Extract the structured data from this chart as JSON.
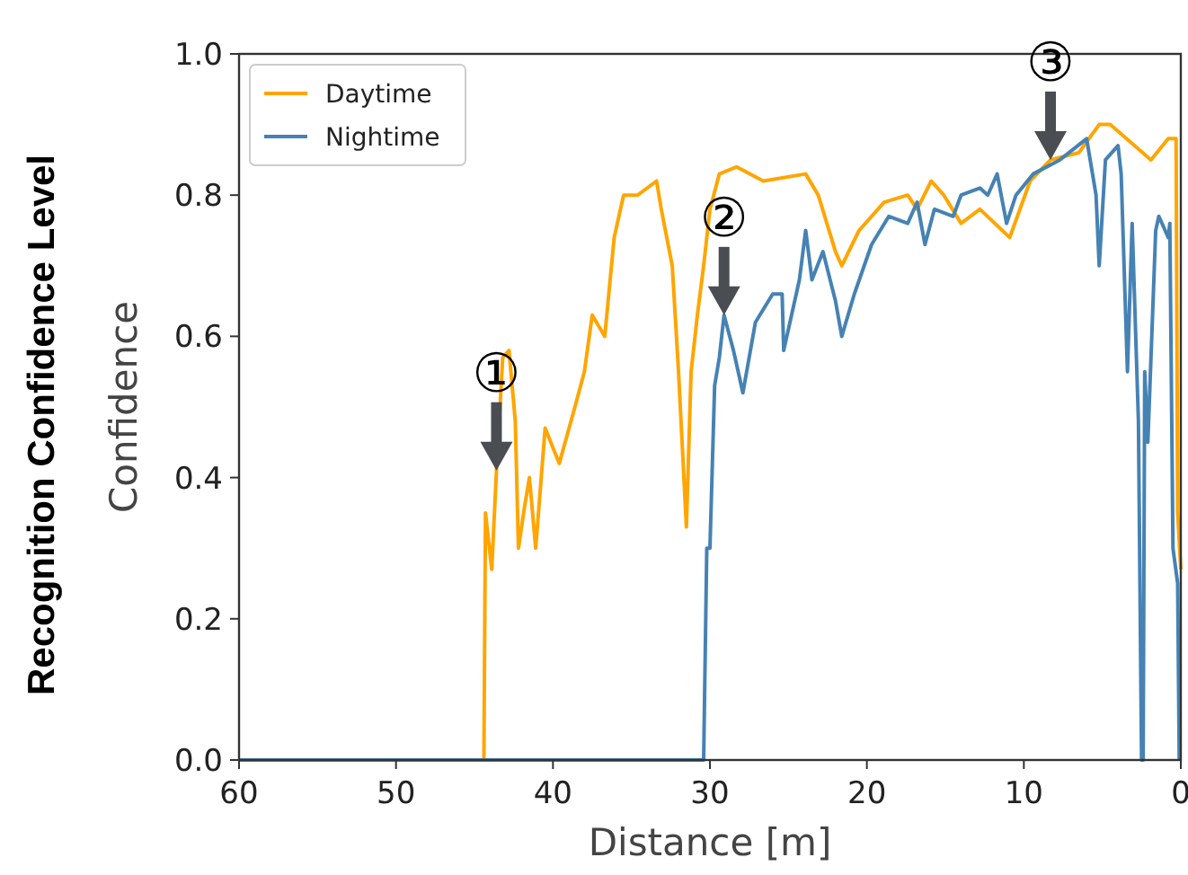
{
  "chart_data": {
    "type": "line",
    "xlabel": "Distance [m]",
    "ylabel": "Confidence",
    "xlim": [
      60,
      0
    ],
    "xticks": [
      60,
      50,
      40,
      30,
      20,
      10,
      0
    ],
    "ylim": [
      0,
      1
    ],
    "yticks": [
      {
        "value": 0,
        "label": "0.0"
      },
      {
        "value": 0.2,
        "label": "0.2"
      },
      {
        "value": 0.4,
        "label": "0.4"
      },
      {
        "value": 0.6,
        "label": "0.6"
      },
      {
        "value": 0.8,
        "label": "0.8"
      },
      {
        "value": 1,
        "label": "1.0"
      }
    ],
    "grid": false,
    "legend": "top left",
    "marker": "none",
    "line_style": "solid",
    "series": [
      {
        "name": "Daytime",
        "color": "#ffa500",
        "x": [
          60,
          44.4,
          44.3,
          43.9,
          43.6,
          43.2,
          42.8,
          42.4,
          42.2,
          41.8,
          41.5,
          41.1,
          40.5,
          39.6,
          38.6,
          38.0,
          37.5,
          36.7,
          36.1,
          35.5,
          34.6,
          33.4,
          33.1,
          32.4,
          32.0,
          31.5,
          31.2,
          30.8,
          30.4,
          30.0,
          29.4,
          28.3,
          26.6,
          23.9,
          23.1,
          22.0,
          21.6,
          20.5,
          18.9,
          17.4,
          16.8,
          15.9,
          15.1,
          14.0,
          12.8,
          10.9,
          9.6,
          8.3,
          6.5,
          5.2,
          4.5,
          1.9,
          0.8,
          0.3,
          0.2,
          0
        ],
        "values": [
          0,
          0,
          0.35,
          0.27,
          0.41,
          0.57,
          0.58,
          0.48,
          0.3,
          0.36,
          0.4,
          0.3,
          0.47,
          0.42,
          0.5,
          0.55,
          0.63,
          0.6,
          0.74,
          0.8,
          0.8,
          0.82,
          0.78,
          0.7,
          0.55,
          0.33,
          0.55,
          0.63,
          0.7,
          0.78,
          0.83,
          0.84,
          0.82,
          0.83,
          0.8,
          0.72,
          0.7,
          0.75,
          0.79,
          0.8,
          0.78,
          0.82,
          0.8,
          0.76,
          0.78,
          0.74,
          0.82,
          0.85,
          0.86,
          0.9,
          0.9,
          0.85,
          0.88,
          0.88,
          0.35,
          0.27
        ]
      },
      {
        "name": "Nightime",
        "color": "#4682b4",
        "x": [
          60,
          30.4,
          30.2,
          30.0,
          29.7,
          29.4,
          29.1,
          28.5,
          27.9,
          27.1,
          26.0,
          25.4,
          25.3,
          24.3,
          23.9,
          23.5,
          22.8,
          22.0,
          21.6,
          20.8,
          19.7,
          18.6,
          17.4,
          16.8,
          16.3,
          15.7,
          14.5,
          14.0,
          12.8,
          12.3,
          11.7,
          11.1,
          10.5,
          9.4,
          7.7,
          6.0,
          5.4,
          5.2,
          4.8,
          4.0,
          3.8,
          3.4,
          3.1,
          2.7,
          2.5,
          2.4,
          2.3,
          2.1,
          1.6,
          1.4,
          0.8,
          0.7,
          0.5,
          0.2,
          0.1
        ],
        "values": [
          0,
          0,
          0.3,
          0.3,
          0.53,
          0.57,
          0.63,
          0.58,
          0.52,
          0.62,
          0.66,
          0.66,
          0.58,
          0.68,
          0.75,
          0.68,
          0.72,
          0.65,
          0.6,
          0.66,
          0.73,
          0.77,
          0.76,
          0.79,
          0.73,
          0.78,
          0.77,
          0.8,
          0.81,
          0.8,
          0.83,
          0.76,
          0.8,
          0.83,
          0.85,
          0.88,
          0.8,
          0.7,
          0.85,
          0.87,
          0.83,
          0.55,
          0.76,
          0.48,
          0,
          0,
          0.55,
          0.45,
          0.75,
          0.77,
          0.74,
          0.76,
          0.3,
          0.25,
          0
        ]
      }
    ],
    "annotations": [
      {
        "text": "①",
        "x": 43.6,
        "y": 0.41
      },
      {
        "text": "②",
        "x": 29.1,
        "y": 0.63
      },
      {
        "text": "③",
        "x": 8.3,
        "y": 0.85
      },
      "Recognition Confidence Level"
    ]
  }
}
